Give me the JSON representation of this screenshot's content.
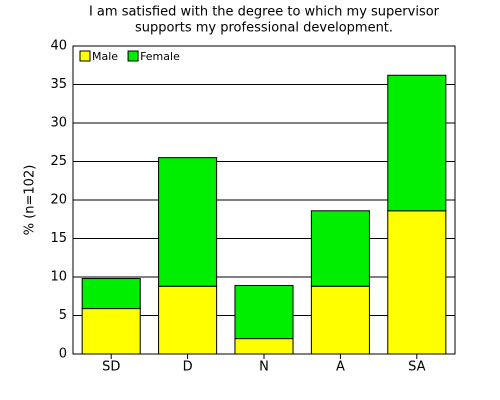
{
  "chart_data": {
    "type": "stacked_bar",
    "title": [
      "I am satisfied with the degree to which my supervisor",
      "supports my professional development."
    ],
    "y_label": "% (n=102)",
    "categories": [
      "SD",
      "D",
      "N",
      "A",
      "SA"
    ],
    "series": [
      {
        "name": "Male",
        "color": "#ffff00",
        "values": [
          5.9,
          8.8,
          2.0,
          8.8,
          18.6
        ]
      },
      {
        "name": "Female",
        "color": "#00ee00",
        "values": [
          3.9,
          16.7,
          6.9,
          9.8,
          17.6
        ]
      }
    ],
    "ylim": [
      0,
      40
    ],
    "yticks": [
      0,
      5,
      10,
      15,
      20,
      25,
      30,
      35,
      40
    ],
    "grid": true,
    "legend": "top-left"
  }
}
